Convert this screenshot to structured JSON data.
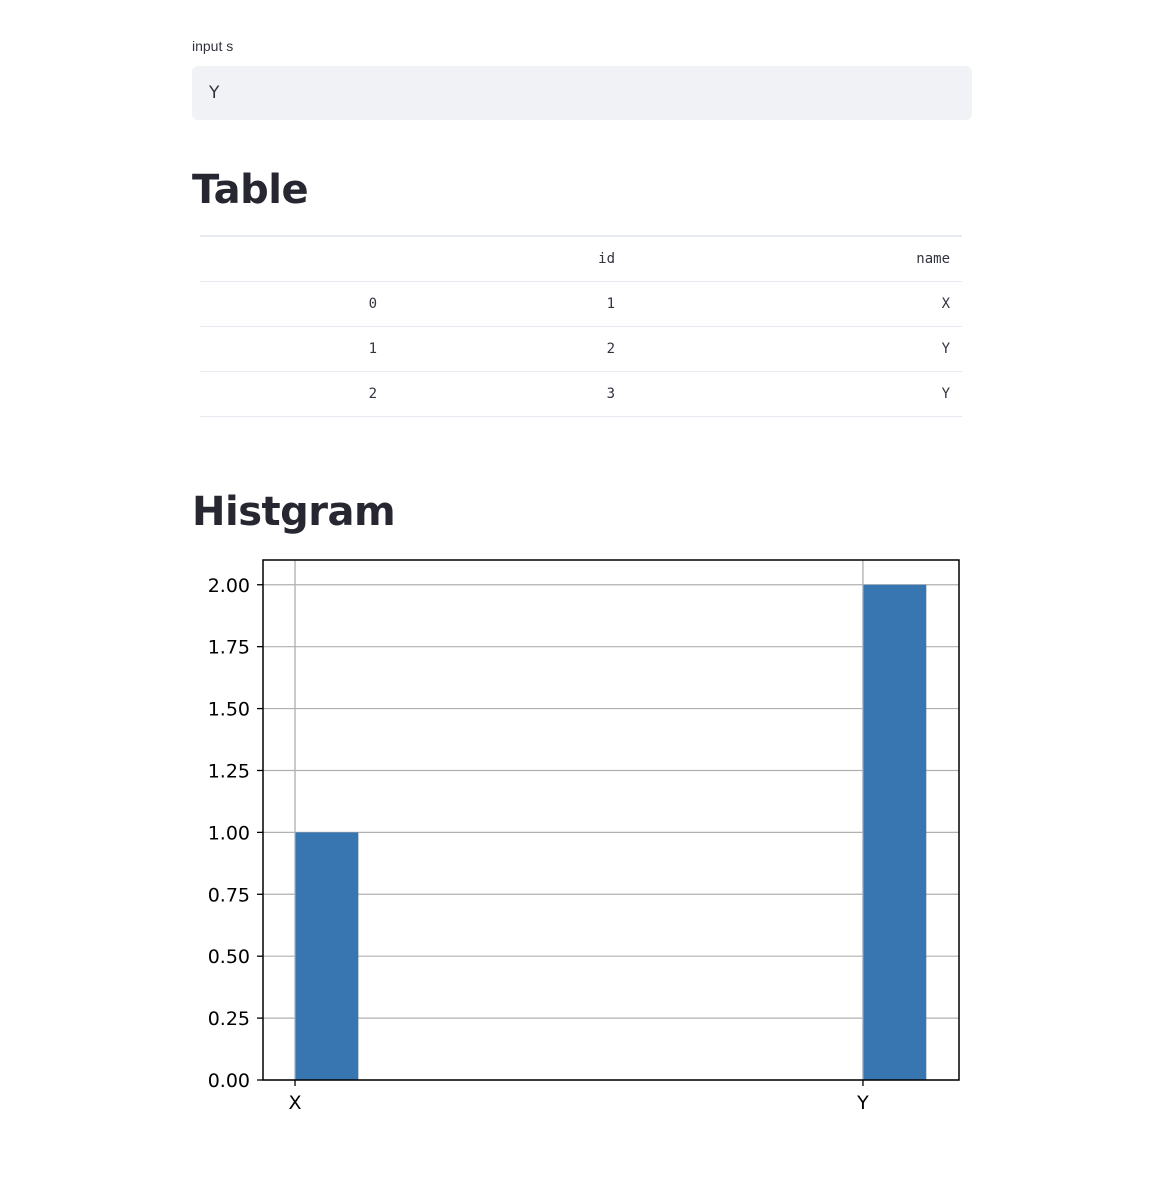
{
  "input": {
    "label": "input s",
    "value": "Y"
  },
  "headings": {
    "table": "Table",
    "histogram": "Histgram"
  },
  "table": {
    "columns": [
      "",
      "id",
      "name"
    ],
    "rows": [
      {
        "index": "0",
        "id": "1",
        "name": "X"
      },
      {
        "index": "1",
        "id": "2",
        "name": "Y"
      },
      {
        "index": "2",
        "id": "3",
        "name": "Y"
      }
    ]
  },
  "colors": {
    "bar": "#3776b0",
    "grid": "#b0b0b0",
    "axis": "#000000",
    "input_bg": "#f0f2f6"
  },
  "chart_data": {
    "type": "bar",
    "categories": [
      "X",
      "Y"
    ],
    "values": [
      1,
      2
    ],
    "ylim": [
      0,
      2.1
    ],
    "yticks": [
      0,
      0.25,
      0.5,
      0.75,
      1.0,
      1.25,
      1.5,
      1.75,
      2.0
    ],
    "ytick_labels": [
      "0.00",
      "0.25",
      "0.50",
      "0.75",
      "1.00",
      "1.25",
      "1.50",
      "1.75",
      "2.00"
    ],
    "title": "",
    "xlabel": "",
    "ylabel": "",
    "grid": true
  }
}
